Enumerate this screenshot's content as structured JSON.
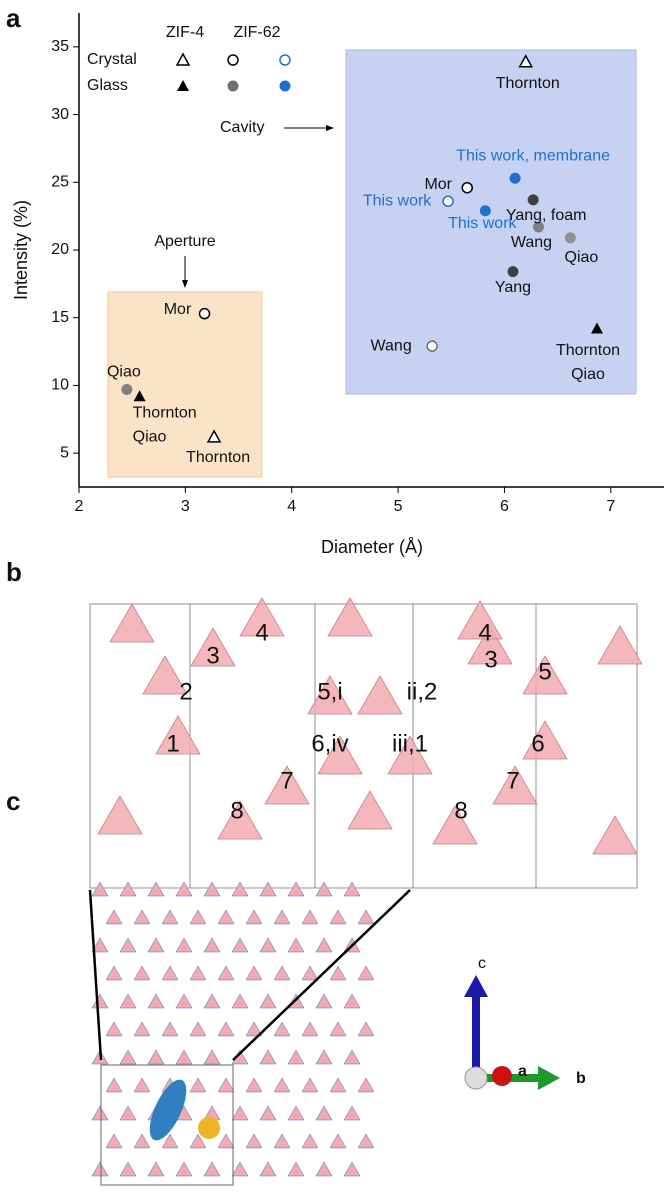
{
  "panel_labels": [
    "a",
    "b",
    "c"
  ],
  "chart_data": {
    "type": "scatter",
    "ylabel": "Intensity (%)",
    "xlabel": "Diameter (Å)",
    "xlim": [
      2,
      7.5
    ],
    "ylim": [
      2.5,
      37.5
    ],
    "xticks": [
      2,
      3,
      4,
      5,
      6,
      7
    ],
    "yticks": [
      5,
      10,
      15,
      20,
      25,
      30,
      35
    ],
    "legend": {
      "columns": [
        "ZIF-4",
        "ZIF-62"
      ],
      "rows": [
        "Crystal",
        "Glass"
      ]
    },
    "annotations": [
      "Aperture",
      "Cavity"
    ],
    "points": [
      {
        "label": [
          "Thornton"
        ],
        "x": 3.27,
        "y": 6.2,
        "marker": "triangle-open",
        "color": "#000000"
      },
      {
        "label": [
          "Thornton"
        ],
        "x": 6.2,
        "y": 33.9,
        "marker": "triangle-open",
        "color": "#000000"
      },
      {
        "label": [
          "Thornton",
          "Qiao"
        ],
        "x": 2.57,
        "y": 9.2,
        "marker": "triangle",
        "color": "#000000"
      },
      {
        "label": [
          "Thornton",
          "Qiao"
        ],
        "x": 6.87,
        "y": 14.2,
        "marker": "triangle",
        "color": "#000000"
      },
      {
        "label": [
          "Mor"
        ],
        "x": 3.18,
        "y": 15.3,
        "marker": "circle-open",
        "color": "#000000"
      },
      {
        "label": [
          "Mor"
        ],
        "x": 5.65,
        "y": 24.6,
        "marker": "circle-open",
        "color": "#000000"
      },
      {
        "label": [
          "Wang"
        ],
        "x": 5.32,
        "y": 12.9,
        "marker": "circle-open",
        "color": "#707070"
      },
      {
        "label": [
          "Qiao"
        ],
        "x": 2.45,
        "y": 9.7,
        "marker": "circle",
        "color": "#808080"
      },
      {
        "label": [
          "Wang"
        ],
        "x": 6.32,
        "y": 21.7,
        "marker": "circle",
        "color": "#808080"
      },
      {
        "label": [
          "Qiao"
        ],
        "x": 6.62,
        "y": 20.9,
        "marker": "circle",
        "color": "#909090"
      },
      {
        "label": [
          "Yang, foam"
        ],
        "x": 6.27,
        "y": 23.7,
        "marker": "circle",
        "color": "#404040"
      },
      {
        "label": [
          "Yang"
        ],
        "x": 6.08,
        "y": 18.4,
        "marker": "circle",
        "color": "#404040"
      },
      {
        "label": [
          "This work"
        ],
        "x": 5.47,
        "y": 23.6,
        "marker": "circle-open",
        "color": "#1e6fd0"
      },
      {
        "label": [
          "This work"
        ],
        "x": 5.82,
        "y": 22.9,
        "marker": "circle",
        "color": "#1e6fd0"
      },
      {
        "label": [
          "This work, membrane"
        ],
        "x": 6.1,
        "y": 25.3,
        "marker": "circle",
        "color": "#1e6fd0"
      }
    ]
  },
  "structure": {
    "atom_labels": [
      "4",
      "3",
      "2",
      "1",
      "5,i",
      "ii,2",
      "6,iv",
      "iii,1",
      "7",
      "8",
      "3",
      "4",
      "5",
      "6",
      "7",
      "8"
    ]
  },
  "axes_triad": [
    "c",
    "a",
    "b"
  ]
}
